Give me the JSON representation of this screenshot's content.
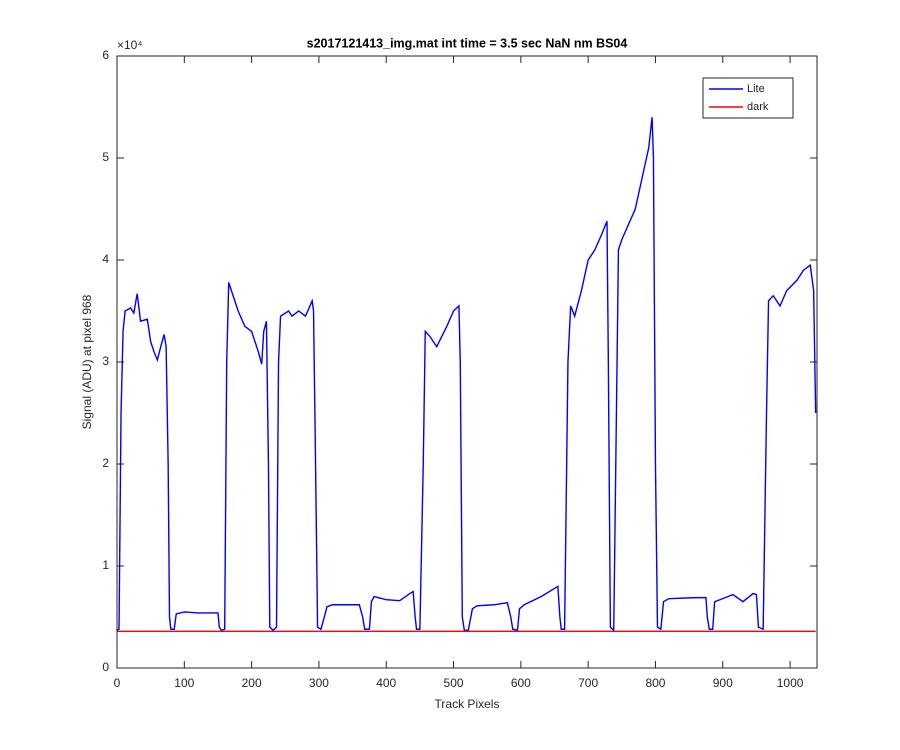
{
  "chart_data": {
    "type": "line",
    "title": "s2017121413_img.mat int time = 3.5 sec  NaN nm BS04",
    "xlabel": "Track Pixels",
    "ylabel": "Signal (ADU) at pixel 968",
    "y_exponent": "×10⁴",
    "xlim": [
      0,
      1040
    ],
    "ylim": [
      0,
      60000
    ],
    "xticks": [
      0,
      100,
      200,
      300,
      400,
      500,
      600,
      700,
      800,
      900,
      1000
    ],
    "yticks": [
      0,
      {
        "value": 10000,
        "label": "1"
      },
      {
        "value": 20000,
        "label": "2"
      },
      {
        "value": 30000,
        "label": "3"
      },
      {
        "value": 40000,
        "label": "4"
      },
      {
        "value": 50000,
        "label": "5"
      },
      {
        "value": 60000,
        "label": "6"
      }
    ],
    "legend": "top-right",
    "series": [
      {
        "name": "Lite",
        "color": "#0000ff",
        "x": [
          0,
          3,
          6,
          9,
          12,
          20,
          25,
          30,
          35,
          45,
          50,
          55,
          60,
          65,
          70,
          73,
          76,
          78,
          80,
          85,
          88,
          100,
          120,
          150,
          152,
          155,
          160,
          163,
          166,
          170,
          180,
          190,
          200,
          210,
          215,
          218,
          222,
          225,
          227,
          232,
          237,
          240,
          243,
          255,
          260,
          270,
          280,
          290,
          292,
          295,
          298,
          303,
          308,
          312,
          320,
          340,
          360,
          365,
          368,
          375,
          378,
          382,
          400,
          420,
          435,
          440,
          443,
          445,
          450,
          455,
          458,
          465,
          475,
          490,
          500,
          508,
          510,
          513,
          516,
          522,
          528,
          535,
          560,
          580,
          585,
          588,
          595,
          598,
          605,
          630,
          650,
          655,
          658,
          660,
          665,
          670,
          674,
          680,
          690,
          700,
          710,
          720,
          728,
          730,
          733,
          738,
          742,
          745,
          750,
          770,
          780,
          790,
          795,
          797,
          800,
          803,
          808,
          812,
          820,
          860,
          875,
          877,
          880,
          885,
          888,
          900,
          915,
          930,
          945,
          950,
          953,
          960,
          965,
          968,
          975,
          985,
          995,
          1010,
          1020,
          1030,
          1035,
          1038
        ],
        "values": [
          3700,
          3800,
          25000,
          33000,
          35000,
          35300,
          34800,
          36700,
          34000,
          34200,
          32000,
          31000,
          30200,
          31500,
          32700,
          31500,
          20000,
          5000,
          3800,
          3800,
          5300,
          5500,
          5400,
          5400,
          4000,
          3700,
          3800,
          30000,
          37800,
          37000,
          35000,
          33500,
          33000,
          31000,
          29800,
          33000,
          34000,
          20000,
          4000,
          3700,
          4000,
          30000,
          34500,
          35000,
          34500,
          35000,
          34500,
          36000,
          35000,
          20000,
          4000,
          3800,
          5000,
          6000,
          6200,
          6200,
          6200,
          5000,
          3800,
          3800,
          6500,
          7000,
          6700,
          6600,
          7300,
          7500,
          5000,
          3800,
          3800,
          20000,
          33000,
          32500,
          31500,
          33500,
          35000,
          35500,
          30000,
          5000,
          3700,
          3700,
          5800,
          6100,
          6200,
          6400,
          5000,
          3800,
          3700,
          5800,
          6200,
          7000,
          7800,
          8000,
          5000,
          3800,
          3800,
          30000,
          35500,
          34500,
          37000,
          40000,
          41000,
          42500,
          43800,
          30000,
          4000,
          3700,
          25000,
          41000,
          42000,
          45000,
          48000,
          51000,
          54000,
          50000,
          20000,
          4000,
          3800,
          6500,
          6800,
          6900,
          6900,
          5000,
          3800,
          3800,
          6500,
          6800,
          7200,
          6500,
          7300,
          7200,
          4000,
          3800,
          25000,
          36000,
          36500,
          35500,
          37000,
          38000,
          39000,
          39500,
          37000,
          25000
        ]
      },
      {
        "name": "dark",
        "color": "#ff0000",
        "x": [
          0,
          200,
          400,
          600,
          800,
          1038
        ],
        "values": [
          3600,
          3600,
          3600,
          3600,
          3600,
          3600
        ]
      }
    ]
  }
}
